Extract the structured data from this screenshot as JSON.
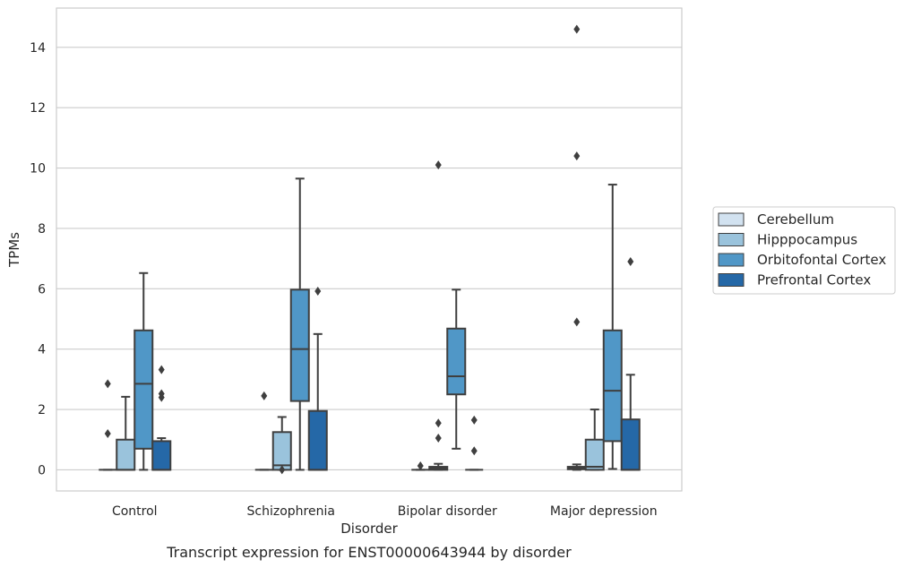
{
  "chart_data": {
    "type": "boxplot",
    "title": "",
    "caption": "Transcript expression for ENST00000643944 by disorder",
    "xlabel": "Disorder",
    "ylabel": "TPMs",
    "ylim": [
      -0.7,
      15.3
    ],
    "yticks": [
      0,
      2,
      4,
      6,
      8,
      10,
      12,
      14
    ],
    "grid": "horizontal",
    "legend_position": "right",
    "categories": [
      "Control",
      "Schizophrenia",
      "Bipolar disorder",
      "Major depression"
    ],
    "series": [
      {
        "name": "Cerebellum",
        "color": "#d2e2f0",
        "boxes": [
          {
            "q1": 0,
            "median": 0,
            "q3": 0,
            "whislo": 0,
            "whishi": 0,
            "fliers": [
              1.2,
              2.85
            ]
          },
          {
            "q1": 0,
            "median": 0,
            "q3": 0,
            "whislo": 0,
            "whishi": 0,
            "fliers": [
              2.45
            ]
          },
          {
            "q1": 0,
            "median": 0,
            "q3": 0,
            "whislo": 0,
            "whishi": 0,
            "fliers": [
              0.13
            ]
          },
          {
            "q1": 0.02,
            "median": 0.05,
            "q3": 0.1,
            "whislo": 0,
            "whishi": 0.18,
            "fliers": [
              4.9,
              10.4,
              14.6
            ]
          }
        ]
      },
      {
        "name": "Hipppocampus",
        "color": "#9ac3dc",
        "boxes": [
          {
            "q1": 0,
            "median": 0,
            "q3": 1.0,
            "whislo": 0,
            "whishi": 2.42,
            "fliers": []
          },
          {
            "q1": 0,
            "median": 0.15,
            "q3": 1.25,
            "whislo": 0,
            "whishi": 1.75,
            "fliers": [
              0
            ]
          },
          {
            "q1": 0,
            "median": 0.05,
            "q3": 0.1,
            "whislo": 0,
            "whishi": 0.2,
            "fliers": [
              1.05,
              1.55,
              10.1
            ]
          },
          {
            "q1": 0,
            "median": 0.1,
            "q3": 1.0,
            "whislo": 0,
            "whishi": 2.0,
            "fliers": []
          }
        ]
      },
      {
        "name": "Orbitofontal Cortex",
        "color": "#5097c7",
        "boxes": [
          {
            "q1": 0.7,
            "median": 2.85,
            "q3": 4.62,
            "whislo": 0,
            "whishi": 6.52,
            "fliers": []
          },
          {
            "q1": 2.28,
            "median": 4.0,
            "q3": 5.97,
            "whislo": 0,
            "whishi": 9.65,
            "fliers": []
          },
          {
            "q1": 2.5,
            "median": 3.1,
            "q3": 4.68,
            "whislo": 0.7,
            "whishi": 5.97,
            "fliers": []
          },
          {
            "q1": 0.95,
            "median": 2.62,
            "q3": 4.62,
            "whislo": 0.03,
            "whishi": 9.45,
            "fliers": []
          }
        ]
      },
      {
        "name": "Prefrontal Cortex",
        "color": "#2568a7",
        "boxes": [
          {
            "q1": 0,
            "median": 0,
            "q3": 0.95,
            "whislo": 0,
            "whishi": 1.05,
            "fliers": [
              2.4,
              2.52,
              3.32
            ]
          },
          {
            "q1": 0,
            "median": 0,
            "q3": 1.95,
            "whislo": 0,
            "whishi": 4.5,
            "fliers": [
              5.92
            ]
          },
          {
            "q1": 0,
            "median": 0,
            "q3": 0,
            "whislo": 0,
            "whishi": 0,
            "fliers": [
              0.63,
              1.65
            ]
          },
          {
            "q1": 0,
            "median": 0,
            "q3": 1.67,
            "whislo": 0,
            "whishi": 3.15,
            "fliers": [
              6.9
            ]
          }
        ]
      }
    ]
  }
}
